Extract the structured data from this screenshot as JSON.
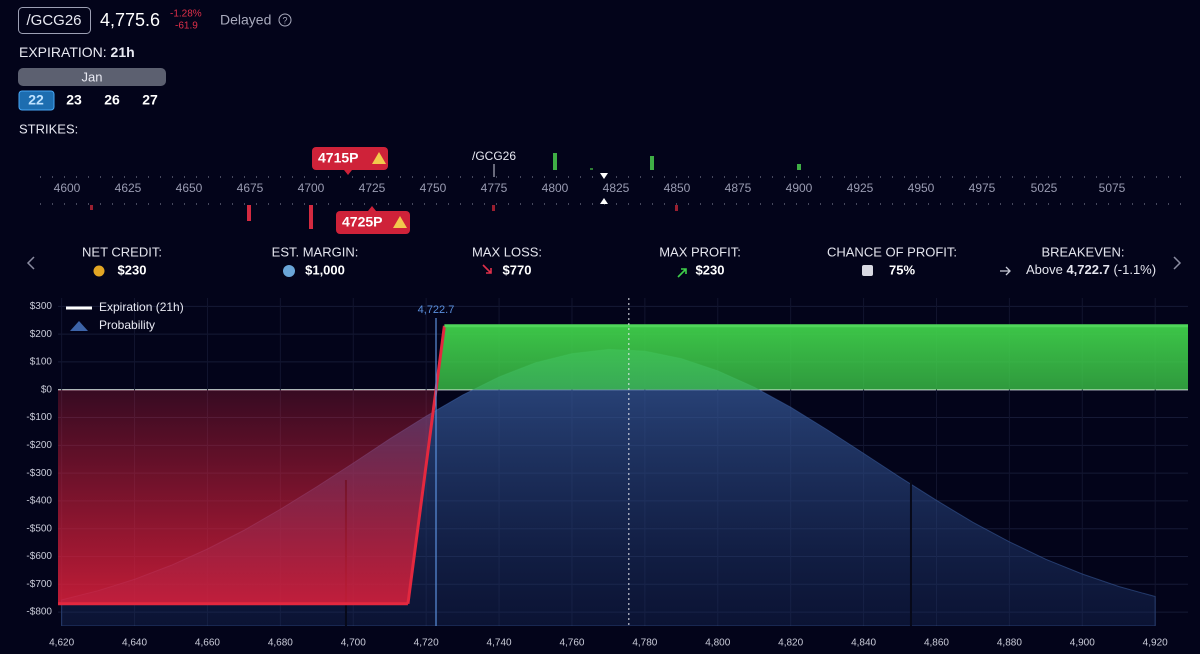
{
  "header": {
    "symbol": "/GCG26",
    "price": "4,775.6",
    "change_pct": "-1.28%",
    "change": "-61.9",
    "status": "Delayed"
  },
  "expiration": {
    "label": "EXPIRATION:",
    "value": "21h",
    "month": "Jan",
    "days": [
      "22",
      "23",
      "26",
      "27"
    ]
  },
  "strikes": {
    "label": "STRIKES:",
    "ticks": [
      4600,
      4625,
      4650,
      4675,
      4700,
      4725,
      4750,
      4775,
      4800,
      4825,
      4850,
      4875,
      4900,
      4925,
      4950,
      4975,
      5025,
      5075
    ],
    "underlying": "/GCG26",
    "short_leg": "4715P",
    "long_leg": "4725P"
  },
  "stats": [
    {
      "label": "NET CREDIT:",
      "value": "$230"
    },
    {
      "label": "EST. MARGIN:",
      "value": "$1,000"
    },
    {
      "label": "MAX LOSS:",
      "value": "$770"
    },
    {
      "label": "MAX PROFIT:",
      "value": "$230"
    },
    {
      "label": "CHANCE OF PROFIT:",
      "value": "75%"
    },
    {
      "label": "BREAKEVEN:",
      "prefix": "Above",
      "value": "4,722.7",
      "note": "(-1.1%)"
    }
  ],
  "chart_data": {
    "type": "line",
    "series": [
      {
        "name": "Expiration (21h)",
        "color": "#ffffff",
        "x": [
          4619,
          4715,
          4725,
          4929
        ],
        "values": [
          -770,
          -770,
          230,
          230
        ]
      },
      {
        "name": "Probability",
        "color": "#3d64a8",
        "x": [
          4620,
          4630,
          4640,
          4650,
          4660,
          4670,
          4680,
          4690,
          4700,
          4710,
          4720,
          4730,
          4740,
          4750,
          4760,
          4770,
          4780,
          4790,
          4800,
          4810,
          4820,
          4830,
          4840,
          4850,
          4860,
          4870,
          4880,
          4890,
          4900,
          4910,
          4920
        ],
        "values": [
          -756,
          -723,
          -682,
          -632,
          -573,
          -506,
          -430,
          -349,
          -264,
          -177,
          -95,
          -19,
          46,
          97,
          130,
          145,
          139,
          112,
          68,
          9,
          -63,
          -144,
          -229,
          -315,
          -398,
          -477,
          -547,
          -610,
          -663,
          -708,
          -744
        ]
      }
    ],
    "xlim": [
      4619,
      4929
    ],
    "ylim": [
      -850,
      330
    ],
    "xticks": [
      {
        "value": 4620,
        "label": "4,620"
      },
      {
        "value": 4640,
        "label": "4,640"
      },
      {
        "value": 4660,
        "label": "4,660"
      },
      {
        "value": 4680,
        "label": "4,680"
      },
      {
        "value": 4700,
        "label": "4,700"
      },
      {
        "value": 4720,
        "label": "4,720"
      },
      {
        "value": 4740,
        "label": "4,740"
      },
      {
        "value": 4760,
        "label": "4,760"
      },
      {
        "value": 4780,
        "label": "4,780"
      },
      {
        "value": 4800,
        "label": "4,800"
      },
      {
        "value": 4820,
        "label": "4,820"
      },
      {
        "value": 4840,
        "label": "4,840"
      },
      {
        "value": 4860,
        "label": "4,860"
      },
      {
        "value": 4880,
        "label": "4,880"
      },
      {
        "value": 4900,
        "label": "4,900"
      },
      {
        "value": 4920,
        "label": "4,920"
      }
    ],
    "yticks": [
      {
        "value": 300,
        "label": "$300"
      },
      {
        "value": 200,
        "label": "$200"
      },
      {
        "value": 100,
        "label": "$100"
      },
      {
        "value": 0,
        "label": "$0"
      },
      {
        "value": -100,
        "label": "-$100"
      },
      {
        "value": -200,
        "label": "-$200"
      },
      {
        "value": -300,
        "label": "-$300"
      },
      {
        "value": -400,
        "label": "-$400"
      },
      {
        "value": -500,
        "label": "-$500"
      },
      {
        "value": -600,
        "label": "-$600"
      },
      {
        "value": -700,
        "label": "-$700"
      },
      {
        "value": -800,
        "label": "-$800"
      }
    ],
    "breakeven": {
      "value": 4722.7,
      "label": "4,722.7"
    },
    "current_price": 4775.6,
    "markers": [
      4698,
      4853
    ],
    "grid": true
  }
}
